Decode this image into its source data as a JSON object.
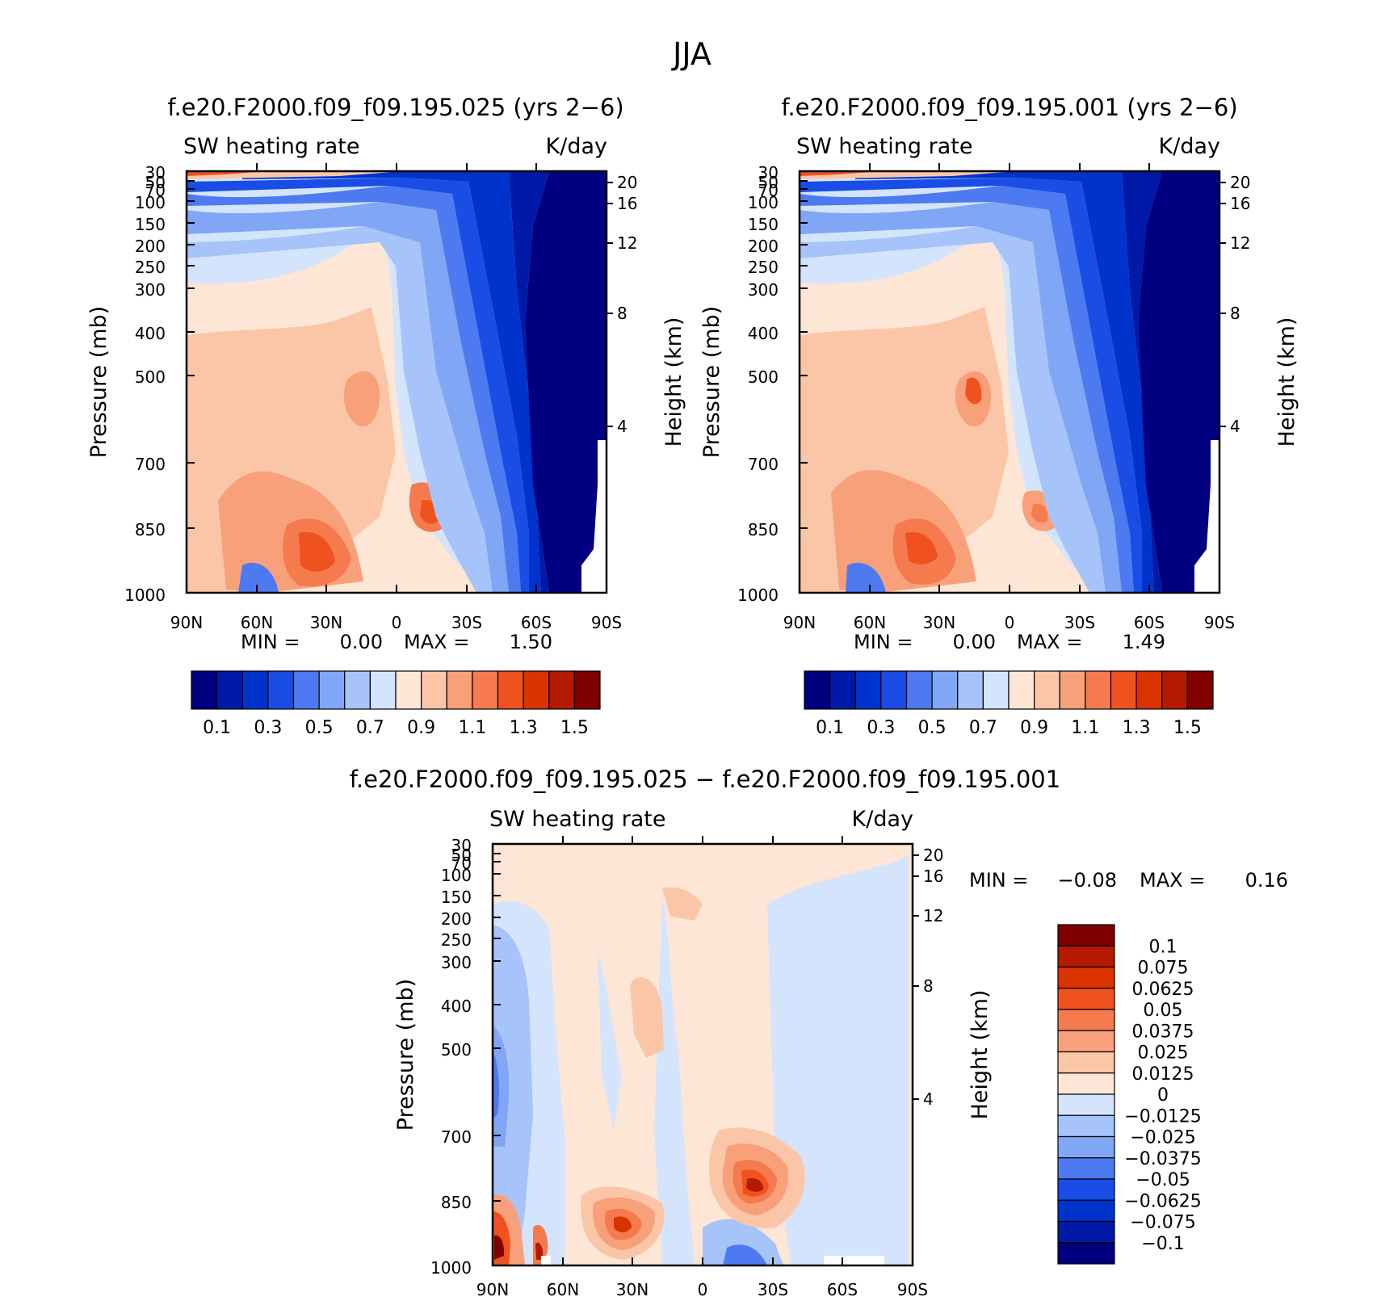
{
  "main_title": "JJA",
  "colors": {
    "abs_scale": [
      "#000080",
      "#0019a6",
      "#0033cc",
      "#1a4de6",
      "#4d7af0",
      "#80a6f5",
      "#a6c4fa",
      "#d4e4fc",
      "#fde6d6",
      "#fbc6a8",
      "#f8a07a",
      "#f57a4d",
      "#f0521f",
      "#d93300",
      "#b31a00",
      "#800000"
    ],
    "diff_scale": [
      "#000080",
      "#0019a6",
      "#0033cc",
      "#1a4de6",
      "#4d7af0",
      "#80a6f5",
      "#a6c4fa",
      "#d4e4fc",
      "#fde6d6",
      "#fbc6a8",
      "#f8a07a",
      "#f57a4d",
      "#f0521f",
      "#d93300",
      "#b31a00",
      "#800000"
    ]
  },
  "panels": [
    {
      "title": "f.e20.F2000.f09_f09.195.025 (yrs 2−6)",
      "left_label": "SW heating rate",
      "right_label": "K/day",
      "y_label": "Pressure (mb)",
      "y2_label": "Height (km)",
      "min_label": "MIN =",
      "min_value": "0.00",
      "max_label": "MAX =",
      "max_value": "1.50"
    },
    {
      "title": "f.e20.F2000.f09_f09.195.001 (yrs 2−6)",
      "left_label": "SW heating rate",
      "right_label": "K/day",
      "y_label": "Pressure (mb)",
      "y2_label": "Height (km)",
      "min_label": "MIN =",
      "min_value": "0.00",
      "max_label": "MAX =",
      "max_value": "1.49"
    },
    {
      "title": "f.e20.F2000.f09_f09.195.025 − f.e20.F2000.f09_f09.195.001",
      "left_label": "SW heating rate",
      "right_label": "K/day",
      "y_label": "Pressure (mb)",
      "y2_label": "Height (km)",
      "min_label": "MIN =",
      "min_value": "−0.08",
      "max_label": "MAX =",
      "max_value": "0.16"
    }
  ],
  "chart_data": [
    {
      "type": "heatmap",
      "title": "f.e20.F2000.f09_f09.195.025 (yrs 2−6)",
      "field": "SW heating rate",
      "units": "K/day",
      "xlabel": "",
      "ylabel": "Pressure (mb)",
      "y2label": "Height (km)",
      "x_ticks": [
        "90N",
        "60N",
        "30N",
        "0",
        "30S",
        "60S",
        "90S"
      ],
      "y_ticks": [
        "30",
        "50",
        "70",
        "100",
        "150",
        "200",
        "250",
        "300",
        "400",
        "500",
        "700",
        "850",
        "1000"
      ],
      "y2_ticks": [
        "20",
        "16",
        "12",
        "8",
        "4"
      ],
      "y_scale": "log-pressure",
      "min": 0.0,
      "max": 1.5,
      "colorbar_labels": [
        "0.1",
        "0.3",
        "0.5",
        "0.7",
        "0.9",
        "1.1",
        "1.3",
        "1.5"
      ]
    },
    {
      "type": "heatmap",
      "title": "f.e20.F2000.f09_f09.195.001 (yrs 2−6)",
      "field": "SW heating rate",
      "units": "K/day",
      "xlabel": "",
      "ylabel": "Pressure (mb)",
      "y2label": "Height (km)",
      "x_ticks": [
        "90N",
        "60N",
        "30N",
        "0",
        "30S",
        "60S",
        "90S"
      ],
      "y_ticks": [
        "30",
        "50",
        "70",
        "100",
        "150",
        "200",
        "250",
        "300",
        "400",
        "500",
        "700",
        "850",
        "1000"
      ],
      "y2_ticks": [
        "20",
        "16",
        "12",
        "8",
        "4"
      ],
      "y_scale": "log-pressure",
      "min": 0.0,
      "max": 1.49,
      "colorbar_labels": [
        "0.1",
        "0.3",
        "0.5",
        "0.7",
        "0.9",
        "1.1",
        "1.3",
        "1.5"
      ]
    },
    {
      "type": "heatmap",
      "title": "f.e20.F2000.f09_f09.195.025 − f.e20.F2000.f09_f09.195.001",
      "field": "SW heating rate",
      "units": "K/day",
      "xlabel": "",
      "ylabel": "Pressure (mb)",
      "y2label": "Height (km)",
      "x_ticks": [
        "90N",
        "60N",
        "30N",
        "0",
        "30S",
        "60S",
        "90S"
      ],
      "y_ticks": [
        "30",
        "50",
        "70",
        "100",
        "150",
        "200",
        "250",
        "300",
        "400",
        "500",
        "700",
        "850",
        "1000"
      ],
      "y2_ticks": [
        "20",
        "16",
        "12",
        "8",
        "4"
      ],
      "y_scale": "log-pressure",
      "min": -0.08,
      "max": 0.16,
      "colorbar_labels": [
        "0.1",
        "0.075",
        "0.0625",
        "0.05",
        "0.0375",
        "0.025",
        "0.0125",
        "0",
        "−0.0125",
        "−0.025",
        "−0.0375",
        "−0.05",
        "−0.0625",
        "−0.075",
        "−0.1"
      ]
    }
  ]
}
